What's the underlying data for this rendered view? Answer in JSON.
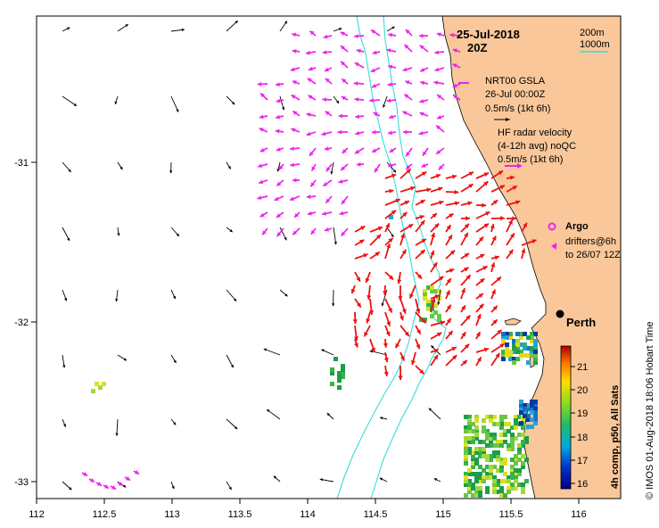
{
  "map": {
    "date": "25-Jul-2018",
    "time": "20Z",
    "city": "Perth",
    "x_ticks": [
      "112",
      "112.5",
      "113",
      "113.5",
      "114",
      "114.5",
      "115",
      "115.5",
      "116"
    ],
    "y_ticks": [
      "-31",
      "-32",
      "-33"
    ]
  },
  "legend": {
    "isobath_shallow": "200m",
    "isobath_deep": "1000m",
    "gsla_title": "NRT00 GSLA",
    "gsla_date": "26-Jul 00:00Z",
    "gsla_scale": "0.5m/s (1kt 6h)",
    "radar_title": "HF radar velocity",
    "radar_avg": "(4-12h avg) noQC",
    "radar_scale": "0.5m/s (1kt 6h)",
    "argo_label": "Argo",
    "drifters_line1": "drifters@6h",
    "drifters_line2": "to 26/07 12Z"
  },
  "colorbar": {
    "title": "4h comp, p50, All Sats",
    "ticks": [
      "21",
      "20",
      "19",
      "18",
      "17",
      "16"
    ],
    "range": [
      15.6,
      21.7
    ]
  },
  "credit": "© IMOS 01-Aug-2018 18:06 Hobart Time",
  "colors": {
    "land": "#f9c799",
    "isobath": "#33dddd",
    "gsla_arrow": "#000000",
    "radar_arrow": "#ee1111",
    "drifter": "#ee22ee"
  }
}
